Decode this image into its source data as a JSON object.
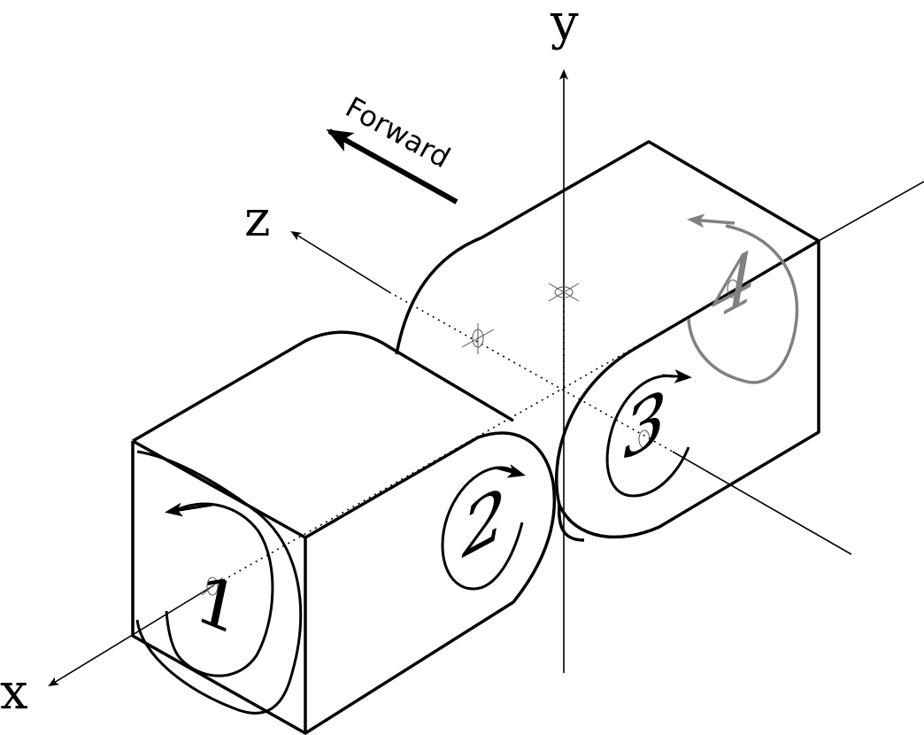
{
  "diagram": {
    "axes": {
      "x": "x",
      "y": "y",
      "z": "z"
    },
    "direction_label": "Forward",
    "rotors": [
      "1",
      "2",
      "3",
      "4"
    ],
    "colors": {
      "line": "#000000",
      "hidden_rotor": "#808080"
    }
  }
}
